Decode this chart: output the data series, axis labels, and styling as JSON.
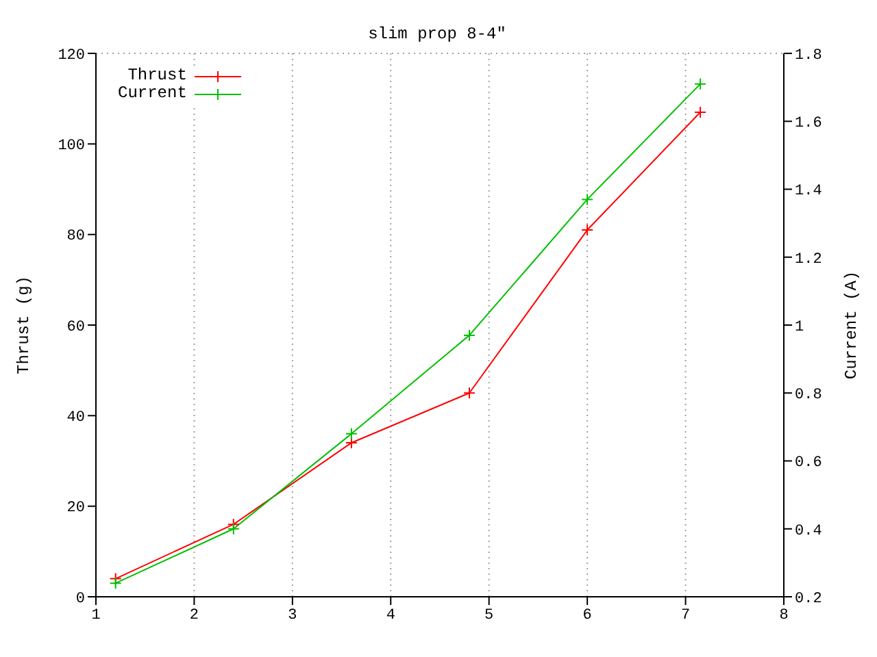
{
  "chart_data": {
    "type": "line",
    "title": "slim prop 8-4\"",
    "ylabel": "Thrust (g)",
    "y2label": "Current (A)",
    "x": [
      1.2,
      2.4,
      3.6,
      4.8,
      6.0,
      7.15
    ],
    "series": [
      {
        "name": "Thrust",
        "color": "#ff0000",
        "values": [
          4,
          16,
          34,
          45,
          81,
          107
        ],
        "marker": "cross"
      },
      {
        "name": "Current",
        "color": "#00c000",
        "values": [
          0.24,
          0.4,
          0.68,
          0.97,
          1.37,
          1.71
        ],
        "axis": "y2",
        "marker": "cross"
      }
    ],
    "xlim": [
      1,
      8
    ],
    "xticks": [
      1,
      2,
      3,
      4,
      5,
      6,
      7,
      8
    ],
    "ylim": [
      0,
      120
    ],
    "yticks": [
      0,
      20,
      40,
      60,
      80,
      100,
      120
    ],
    "y2lim": [
      0.2,
      1.8
    ],
    "y2ticks": [
      0.2,
      0.4,
      0.6,
      0.8,
      1,
      1.2,
      1.4,
      1.6,
      1.8
    ],
    "grid": true,
    "legend": "top left",
    "line_style": "solid"
  }
}
